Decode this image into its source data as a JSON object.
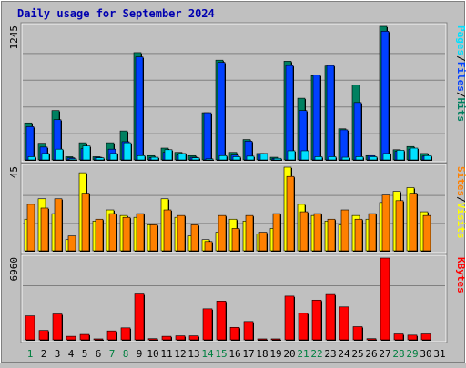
{
  "chart_data": {
    "type": "bar",
    "title": "Daily usage for September 2024",
    "colors": {
      "title": "#0000b0",
      "background": "#c0c0c0",
      "plot_bg": "#c0c0c0",
      "grid": "#808080",
      "hits": "#008060",
      "files": "#0040ff",
      "pages": "#00e0ff",
      "visits": "#ffff00",
      "sites": "#ff8000",
      "kbytes": "#ff0000",
      "weekend_day": "#008040",
      "weekday": "#000000"
    },
    "days": [
      "1",
      "2",
      "3",
      "4",
      "5",
      "6",
      "7",
      "8",
      "9",
      "10",
      "11",
      "12",
      "13",
      "14",
      "15",
      "16",
      "17",
      "18",
      "19",
      "20",
      "21",
      "22",
      "23",
      "24",
      "25",
      "26",
      "27",
      "28",
      "29",
      "30",
      "31"
    ],
    "weekend_days": [
      "1",
      "7",
      "8",
      "14",
      "15",
      "21",
      "22",
      "28",
      "29"
    ],
    "panels": [
      {
        "max_label": "1245",
        "ylim": [
          0,
          1245
        ],
        "legend": [
          "Pages",
          "/",
          "Files",
          "/",
          "Hits"
        ],
        "legend_colors": [
          "#00e0ff",
          "#000000",
          "#0040ff",
          "#000000",
          "#008060"
        ],
        "series": [
          {
            "name": "Hits",
            "values": [
              345,
              155,
              460,
              30,
              160,
              30,
              160,
              270,
              1000,
              40,
              110,
              70,
              40,
              440,
              930,
              70,
              190,
              60,
              25,
              920,
              575,
              785,
              875,
              290,
              700,
              40,
              1245,
              95,
              125,
              60,
              0
            ]
          },
          {
            "name": "Files",
            "values": [
              310,
              120,
              375,
              20,
              105,
              25,
              100,
              170,
              960,
              20,
              70,
              45,
              25,
              440,
              910,
              45,
              175,
              55,
              15,
              880,
              460,
              790,
              880,
              280,
              535,
              40,
              1200,
              80,
              100,
              35,
              0
            ]
          },
          {
            "name": "Pages",
            "values": [
              30,
              60,
              100,
              10,
              130,
              20,
              60,
              160,
              40,
              25,
              95,
              60,
              20,
              10,
              40,
              30,
              35,
              60,
              15,
              85,
              85,
              30,
              30,
              25,
              30,
              30,
              60,
              90,
              110,
              40,
              0
            ]
          }
        ]
      },
      {
        "max_label": "45",
        "ylim": [
          0,
          45
        ],
        "legend": [
          "Sites",
          "/",
          "Visits"
        ],
        "legend_colors": [
          "#ff8000",
          "#000000",
          "#ffff00"
        ],
        "series": [
          {
            "name": "Visits",
            "values": [
              17,
              28,
              20,
              6,
              42,
              16,
              22,
              19,
              18,
              14,
              28,
              18,
              8,
              6,
              10,
              17,
              16,
              9,
              12,
              45,
              25,
              19,
              16,
              14,
              19,
              17,
              26,
              32,
              34,
              21,
              0
            ]
          },
          {
            "name": "Sites",
            "values": [
              25,
              23,
              28,
              8,
              31,
              17,
              20,
              18,
              20,
              14,
              22,
              19,
              14,
              5,
              19,
              12,
              19,
              10,
              20,
              40,
              21,
              20,
              17,
              22,
              17,
              20,
              30,
              27,
              31,
              19,
              0
            ]
          }
        ]
      },
      {
        "max_label": "6960",
        "ylim": [
          0,
          6960
        ],
        "legend": [
          "KBytes"
        ],
        "legend_colors": [
          "#ff0000"
        ],
        "series": [
          {
            "name": "KBytes",
            "values": [
              2040,
              800,
              2200,
              300,
              460,
              80,
              760,
              1020,
              3900,
              100,
              300,
              340,
              340,
              2640,
              3300,
              1060,
              1560,
              80,
              80,
              3720,
              2260,
              3380,
              3860,
              2800,
              1120,
              100,
              6960,
              500,
              400,
              500,
              0
            ]
          }
        ]
      }
    ]
  }
}
